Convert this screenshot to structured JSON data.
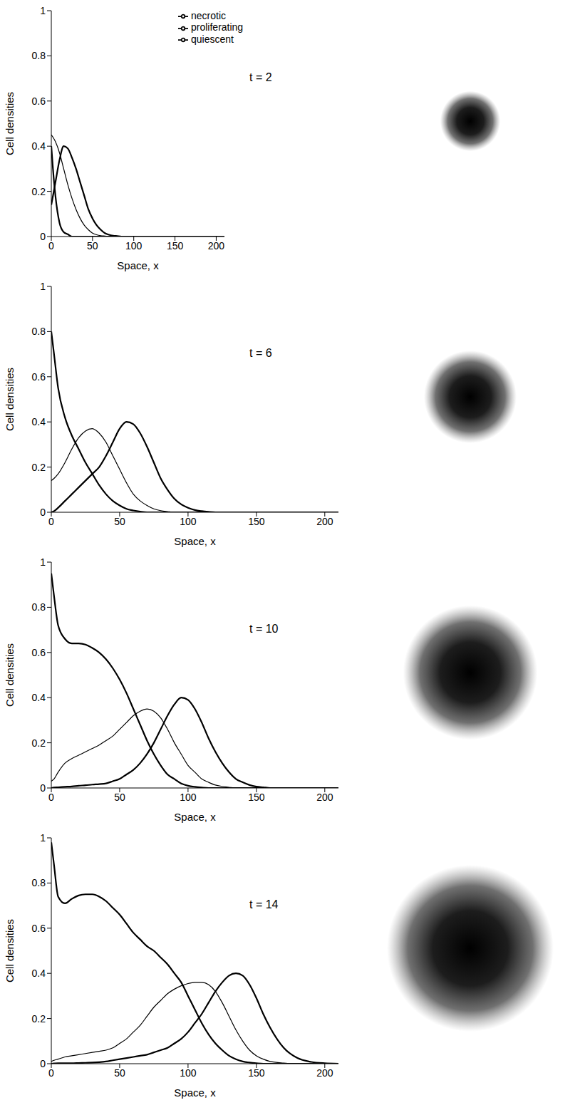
{
  "chart_data": [
    {
      "type": "line",
      "annotation": "t = 2",
      "x_label": "Space,  x",
      "y_label": "Cell densities",
      "legend": "upper right",
      "xlim": [
        0,
        210
      ],
      "xticks": [
        0,
        50,
        100,
        150,
        200
      ],
      "ylim": [
        0,
        1
      ],
      "yticks": [
        0,
        0.2,
        0.4,
        0.6,
        0.8,
        1
      ],
      "x": [
        0,
        2,
        5,
        10,
        15,
        20,
        25,
        30,
        35,
        40,
        45,
        50,
        55,
        60,
        65,
        70,
        75,
        80,
        85,
        90,
        95,
        100,
        105,
        110,
        115,
        120,
        125,
        130,
        135,
        140,
        145,
        150,
        155,
        160,
        170,
        180,
        190,
        200,
        210
      ],
      "series": [
        {
          "name": "proliferating",
          "color": "#000000",
          "values": [
            0.14,
            0.18,
            0.24,
            0.34,
            0.4,
            0.39,
            0.35,
            0.3,
            0.24,
            0.18,
            0.12,
            0.08,
            0.05,
            0.03,
            0.015,
            0.008,
            0.004,
            0.002,
            0,
            0,
            0,
            0,
            0,
            0,
            0,
            0,
            0,
            0,
            0,
            0,
            0,
            0,
            0,
            0,
            0,
            0,
            0,
            0,
            0
          ]
        },
        {
          "name": "quiescent",
          "color": "#000000",
          "values": [
            0.45,
            0.44,
            0.42,
            0.37,
            0.3,
            0.23,
            0.17,
            0.12,
            0.08,
            0.05,
            0.03,
            0.015,
            0.008,
            0.004,
            0.002,
            0,
            0,
            0,
            0,
            0,
            0,
            0,
            0,
            0,
            0,
            0,
            0,
            0,
            0,
            0,
            0,
            0,
            0,
            0,
            0,
            0,
            0,
            0,
            0
          ]
        },
        {
          "name": "necrotic",
          "color": "#000000",
          "values": [
            0.4,
            0.3,
            0.18,
            0.06,
            0.02,
            0.01,
            0,
            0,
            0,
            0,
            0,
            0,
            0,
            0,
            0,
            0,
            0,
            0,
            0,
            0,
            0,
            0,
            0,
            0,
            0,
            0,
            0,
            0,
            0,
            0,
            0,
            0,
            0,
            0,
            0,
            0,
            0,
            0,
            0
          ]
        }
      ]
    },
    {
      "type": "line",
      "annotation": "t = 6",
      "x_label": "Space,  x",
      "y_label": "Cell densities",
      "xlim": [
        0,
        210
      ],
      "xticks": [
        0,
        50,
        100,
        150,
        200
      ],
      "ylim": [
        0,
        1
      ],
      "yticks": [
        0,
        0.2,
        0.4,
        0.6,
        0.8,
        1
      ],
      "x": [
        0,
        2,
        5,
        10,
        15,
        20,
        25,
        30,
        35,
        40,
        45,
        50,
        55,
        60,
        65,
        70,
        75,
        80,
        85,
        90,
        95,
        100,
        105,
        110,
        115,
        120,
        125,
        130,
        135,
        140,
        145,
        150,
        155,
        160,
        170,
        180,
        190,
        200,
        210
      ],
      "series": [
        {
          "name": "proliferating",
          "color": "#000000",
          "values": [
            0,
            0.005,
            0.02,
            0.05,
            0.08,
            0.11,
            0.14,
            0.17,
            0.2,
            0.25,
            0.31,
            0.37,
            0.4,
            0.39,
            0.35,
            0.29,
            0.22,
            0.15,
            0.1,
            0.06,
            0.035,
            0.02,
            0.01,
            0.005,
            0.002,
            0,
            0,
            0,
            0,
            0,
            0,
            0,
            0,
            0,
            0,
            0,
            0,
            0,
            0
          ]
        },
        {
          "name": "quiescent",
          "color": "#000000",
          "values": [
            0.14,
            0.15,
            0.17,
            0.22,
            0.28,
            0.33,
            0.36,
            0.37,
            0.35,
            0.31,
            0.25,
            0.19,
            0.13,
            0.08,
            0.05,
            0.03,
            0.015,
            0.007,
            0.003,
            0,
            0,
            0,
            0,
            0,
            0,
            0,
            0,
            0,
            0,
            0,
            0,
            0,
            0,
            0,
            0,
            0,
            0,
            0,
            0
          ]
        },
        {
          "name": "necrotic",
          "color": "#000000",
          "values": [
            0.8,
            0.7,
            0.55,
            0.42,
            0.34,
            0.28,
            0.22,
            0.17,
            0.12,
            0.08,
            0.05,
            0.03,
            0.015,
            0.008,
            0.003,
            0,
            0,
            0,
            0,
            0,
            0,
            0,
            0,
            0,
            0,
            0,
            0,
            0,
            0,
            0,
            0,
            0,
            0,
            0,
            0,
            0,
            0,
            0,
            0
          ]
        }
      ]
    },
    {
      "type": "line",
      "annotation": "t = 10",
      "x_label": "Space,  x",
      "y_label": "Cell densities",
      "xlim": [
        0,
        210
      ],
      "xticks": [
        0,
        50,
        100,
        150,
        200
      ],
      "ylim": [
        0,
        1
      ],
      "yticks": [
        0,
        0.2,
        0.4,
        0.6,
        0.8,
        1
      ],
      "x": [
        0,
        2,
        5,
        10,
        15,
        20,
        25,
        30,
        35,
        40,
        45,
        50,
        55,
        60,
        65,
        70,
        75,
        80,
        85,
        90,
        95,
        100,
        105,
        110,
        115,
        120,
        125,
        130,
        135,
        140,
        145,
        150,
        155,
        160,
        170,
        180,
        190,
        200,
        210
      ],
      "series": [
        {
          "name": "proliferating",
          "color": "#000000",
          "values": [
            0,
            0.002,
            0.003,
            0.005,
            0.007,
            0.01,
            0.012,
            0.015,
            0.017,
            0.02,
            0.03,
            0.04,
            0.06,
            0.08,
            0.11,
            0.15,
            0.2,
            0.26,
            0.32,
            0.37,
            0.4,
            0.39,
            0.35,
            0.29,
            0.22,
            0.16,
            0.11,
            0.07,
            0.04,
            0.025,
            0.013,
            0.006,
            0.003,
            0,
            0,
            0,
            0,
            0,
            0
          ]
        },
        {
          "name": "quiescent",
          "color": "#000000",
          "values": [
            0.03,
            0.04,
            0.07,
            0.11,
            0.13,
            0.145,
            0.16,
            0.175,
            0.19,
            0.21,
            0.23,
            0.26,
            0.29,
            0.32,
            0.34,
            0.35,
            0.34,
            0.31,
            0.26,
            0.2,
            0.15,
            0.1,
            0.07,
            0.04,
            0.025,
            0.013,
            0.007,
            0.003,
            0,
            0,
            0,
            0,
            0,
            0,
            0,
            0,
            0,
            0,
            0
          ]
        },
        {
          "name": "necrotic",
          "color": "#000000",
          "values": [
            0.95,
            0.85,
            0.72,
            0.66,
            0.64,
            0.64,
            0.635,
            0.62,
            0.6,
            0.57,
            0.53,
            0.48,
            0.42,
            0.35,
            0.28,
            0.21,
            0.15,
            0.1,
            0.06,
            0.04,
            0.02,
            0.01,
            0.005,
            0.002,
            0,
            0,
            0,
            0,
            0,
            0,
            0,
            0,
            0,
            0,
            0,
            0,
            0,
            0,
            0
          ]
        }
      ]
    },
    {
      "type": "line",
      "annotation": "t = 14",
      "x_label": "Space,  x",
      "y_label": "Cell densities",
      "xlim": [
        0,
        210
      ],
      "xticks": [
        0,
        50,
        100,
        150,
        200
      ],
      "ylim": [
        0,
        1
      ],
      "yticks": [
        0,
        0.2,
        0.4,
        0.6,
        0.8,
        1
      ],
      "x": [
        0,
        2,
        5,
        10,
        15,
        20,
        25,
        30,
        35,
        40,
        45,
        50,
        55,
        60,
        65,
        70,
        75,
        80,
        85,
        90,
        95,
        100,
        105,
        110,
        115,
        120,
        125,
        130,
        135,
        140,
        145,
        150,
        155,
        160,
        170,
        180,
        190,
        200,
        210
      ],
      "series": [
        {
          "name": "proliferating",
          "color": "#000000",
          "values": [
            0,
            0.001,
            0.002,
            0.002,
            0.002,
            0.003,
            0.004,
            0.005,
            0.007,
            0.01,
            0.015,
            0.02,
            0.025,
            0.03,
            0.035,
            0.04,
            0.05,
            0.06,
            0.07,
            0.09,
            0.11,
            0.14,
            0.18,
            0.22,
            0.27,
            0.32,
            0.36,
            0.39,
            0.4,
            0.39,
            0.35,
            0.29,
            0.22,
            0.16,
            0.07,
            0.025,
            0.008,
            0.002,
            0
          ]
        },
        {
          "name": "quiescent",
          "color": "#000000",
          "values": [
            0.01,
            0.015,
            0.02,
            0.03,
            0.035,
            0.04,
            0.045,
            0.05,
            0.055,
            0.06,
            0.07,
            0.09,
            0.11,
            0.14,
            0.17,
            0.21,
            0.25,
            0.28,
            0.31,
            0.33,
            0.345,
            0.355,
            0.36,
            0.36,
            0.35,
            0.32,
            0.27,
            0.21,
            0.15,
            0.1,
            0.06,
            0.035,
            0.02,
            0.01,
            0.003,
            0,
            0,
            0,
            0
          ]
        },
        {
          "name": "necrotic",
          "color": "#000000",
          "values": [
            0.98,
            0.88,
            0.74,
            0.71,
            0.73,
            0.745,
            0.75,
            0.75,
            0.74,
            0.72,
            0.69,
            0.66,
            0.62,
            0.58,
            0.55,
            0.52,
            0.5,
            0.47,
            0.44,
            0.4,
            0.36,
            0.3,
            0.24,
            0.18,
            0.13,
            0.09,
            0.06,
            0.035,
            0.02,
            0.01,
            0.005,
            0.002,
            0,
            0,
            0,
            0,
            0,
            0,
            0
          ]
        }
      ]
    }
  ]
}
